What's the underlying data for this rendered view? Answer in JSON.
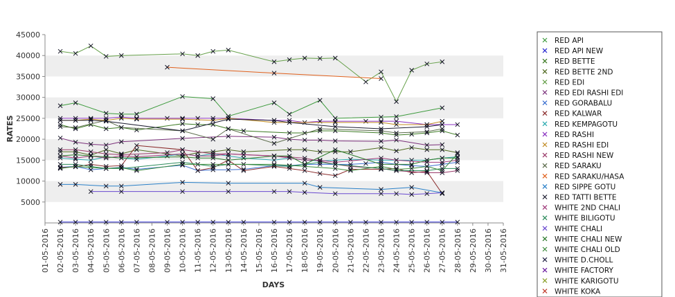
{
  "chart_data": {
    "type": "line",
    "xlabel": "DAYS",
    "ylabel": "RATES",
    "ylim": [
      0,
      45000
    ],
    "yticks": [
      5000,
      10000,
      15000,
      20000,
      25000,
      30000,
      35000,
      40000,
      45000
    ],
    "x_ticks": [
      "01-05-2016",
      "02-05-2016",
      "03-05-2016",
      "04-05-2016",
      "05-05-2016",
      "06-05-2016",
      "07-05-2016",
      "08-05-2016",
      "09-05-2016",
      "10-05-2016",
      "11-05-2016",
      "12-05-2016",
      "13-05-2016",
      "14-05-2016",
      "15-05-2016",
      "16-05-2016",
      "17-05-2016",
      "18-05-2016",
      "19-05-2016",
      "20-05-2016",
      "21-05-2016",
      "22-05-2016",
      "23-05-2016",
      "24-05-2016",
      "25-05-2016",
      "26-05-2016",
      "27-05-2016",
      "28-05-2016",
      "29-05-2016",
      "30-05-2016",
      "31-05-2016"
    ],
    "x_days": [
      2,
      3,
      4,
      5,
      6,
      7,
      9,
      10,
      11,
      12,
      13,
      14,
      16,
      17,
      18,
      19,
      20,
      21,
      22,
      23,
      24,
      25,
      26,
      27,
      28
    ],
    "grid": "alternating horizontal bands",
    "legend_position": "right",
    "series": [
      {
        "name": "RED API",
        "color": "#3c9a3c",
        "values": [
          28000,
          28700,
          null,
          26200,
          26000,
          26000,
          null,
          30200,
          null,
          29700,
          25500,
          null,
          28700,
          26000,
          null,
          29300,
          25000,
          null,
          null,
          25300,
          25400,
          null,
          null,
          27500,
          null
        ]
      },
      {
        "name": "RED API NEW",
        "color": "#2a2ad0",
        "values": [
          200,
          200,
          200,
          200,
          200,
          200,
          200,
          200,
          200,
          200,
          200,
          200,
          200,
          200,
          200,
          200,
          200,
          200,
          200,
          200,
          200,
          200,
          200,
          200,
          200
        ]
      },
      {
        "name": "RED BETTE",
        "color": "#3b7a22",
        "values": [
          23500,
          22500,
          23500,
          22500,
          22800,
          22200,
          null,
          23700,
          23500,
          23500,
          22500,
          22000,
          null,
          21500,
          21500,
          22000,
          22000,
          null,
          null,
          21500,
          21000,
          21200,
          21500,
          22000,
          21000
        ]
      },
      {
        "name": "RED BETTE 2ND",
        "color": "#506b20",
        "values": [
          17000,
          17000,
          16200,
          17500,
          16500,
          17500,
          null,
          16000,
          16800,
          17000,
          17500,
          17000,
          null,
          17500,
          17500,
          17000,
          17000,
          17000,
          null,
          18000,
          17200,
          18000,
          17500,
          17500,
          16800
        ]
      },
      {
        "name": "RED EDI",
        "color": "#66a04a",
        "values": [
          41000,
          40500,
          42300,
          39800,
          40000,
          null,
          null,
          40400,
          40000,
          41000,
          41300,
          null,
          38500,
          39000,
          39400,
          39300,
          39400,
          null,
          33700,
          36100,
          29000,
          36500,
          38000,
          38500,
          null
        ]
      },
      {
        "name": "RED EDI RASHI EDI",
        "color": "#7a2f7a",
        "values": [
          20300,
          19300,
          18800,
          18600,
          19400,
          null,
          null,
          20200,
          null,
          null,
          20700,
          null,
          20500,
          20000,
          19800,
          19800,
          19600,
          null,
          null,
          19500,
          19800,
          null,
          18600,
          18700,
          null
        ]
      },
      {
        "name": "RED GORABALU",
        "color": "#3a6fd0",
        "values": [
          13300,
          13500,
          12700,
          13000,
          13300,
          12800,
          null,
          13800,
          12500,
          12700,
          12700,
          12800,
          13700,
          13700,
          14000,
          14000,
          14000,
          14000,
          14200,
          14500,
          14000,
          13700,
          13500,
          14000,
          14500
        ]
      },
      {
        "name": "RED KALWAR",
        "color": "#8a2a2a",
        "values": [
          13200,
          13400,
          14000,
          13500,
          13700,
          18500,
          null,
          17500,
          12500,
          13200,
          15000,
          12500,
          13500,
          13000,
          12500,
          11800,
          11300,
          12800,
          null,
          12800,
          13000,
          12000,
          12300,
          7000,
          null
        ]
      },
      {
        "name": "RED KEMPAGOTU",
        "color": "#2aaab0",
        "values": [
          15500,
          15200,
          15000,
          15800,
          15500,
          15200,
          16000,
          16500,
          16000,
          16500,
          16000,
          15500,
          15000,
          15500,
          15000,
          14800,
          15000,
          15200,
          null,
          15000,
          15000,
          15000,
          15000,
          15500,
          15800
        ]
      },
      {
        "name": "RED RASHI",
        "color": "#8a30c0",
        "values": [
          25000,
          25000,
          25000,
          25000,
          25300,
          25000,
          25000,
          25000,
          25000,
          25000,
          25000,
          null,
          24500,
          24500,
          24000,
          24300,
          24300,
          null,
          24300,
          24300,
          24300,
          null,
          23500,
          23500,
          23500
        ]
      },
      {
        "name": "RED RASHI EDI",
        "color": "#c08a20",
        "values": [
          24500,
          24500,
          24800,
          24500,
          25000,
          24800,
          null,
          24800,
          null,
          24500,
          25000,
          null,
          24000,
          24000,
          null,
          null,
          24000,
          null,
          null,
          24000,
          23500,
          null,
          23500,
          24300,
          null
        ]
      },
      {
        "name": "RED RASHI NEW",
        "color": "#9a3a6a",
        "values": [
          17500,
          17500,
          17000,
          16500,
          16300,
          null,
          16800,
          17500,
          null,
          16500,
          16500,
          null,
          16000,
          null,
          15500,
          null,
          14000,
          13500,
          null,
          13000,
          12500,
          null,
          12000,
          12000,
          12500
        ]
      },
      {
        "name": "RED SARAKU",
        "color": "#5a6a4a",
        "values": [
          23000,
          22800,
          null,
          24500,
          22800,
          null,
          null,
          22000,
          null,
          20000,
          22500,
          null,
          19000,
          null,
          null,
          22500,
          null,
          null,
          null,
          22000,
          21500,
          null,
          21800,
          22500,
          null
        ]
      },
      {
        "name": "RED SARAKU/HASA",
        "color": "#e0601c",
        "values": [
          null,
          null,
          null,
          null,
          null,
          null,
          37200,
          null,
          null,
          null,
          null,
          null,
          35800,
          null,
          null,
          null,
          null,
          null,
          null,
          34500,
          null,
          null,
          null,
          null,
          null
        ]
      },
      {
        "name": "RED SIPPE GOTU",
        "color": "#2a80c8",
        "values": [
          9200,
          9200,
          null,
          8800,
          8800,
          null,
          null,
          9700,
          null,
          null,
          9500,
          null,
          null,
          null,
          9500,
          8500,
          null,
          null,
          null,
          8000,
          null,
          8500,
          null,
          7200,
          null
        ]
      },
      {
        "name": "RED TATTI BETTE",
        "color": "#1c1c30",
        "values": [
          24500,
          24500,
          24500,
          24300,
          null,
          null,
          null,
          22000,
          null,
          null,
          24800,
          null,
          24500,
          24000,
          null,
          null,
          23000,
          null,
          null,
          22500,
          null,
          null,
          23000,
          23500,
          null
        ]
      },
      {
        "name": "WHITE 2ND CHALI",
        "color": "#a03a7a",
        "values": [
          16000,
          15500,
          16000,
          15500,
          16000,
          15800,
          null,
          16500,
          16000,
          16000,
          16500,
          16300,
          16000,
          15500,
          15000,
          15000,
          14500,
          null,
          null,
          15500,
          15000,
          null,
          14500,
          14500,
          15000
        ]
      },
      {
        "name": "WHITE BILIGOTU",
        "color": "#2a8a5a",
        "values": [
          14000,
          14000,
          13500,
          13000,
          13000,
          null,
          null,
          14500,
          14000,
          13500,
          14000,
          14000,
          null,
          13500,
          null,
          14500,
          14000,
          null,
          null,
          13000,
          12500,
          null,
          12500,
          13000,
          13000
        ]
      },
      {
        "name": "WHITE CHALI",
        "color": "#6a4ad0",
        "values": [
          null,
          null,
          7500,
          null,
          7500,
          null,
          null,
          7500,
          null,
          null,
          7500,
          null,
          7500,
          7500,
          7300,
          null,
          7000,
          null,
          null,
          7000,
          7000,
          6800,
          7000,
          7200,
          null
        ]
      },
      {
        "name": "WHITE CHALI NEW",
        "color": "#2a7a2a",
        "values": [
          16000,
          16300,
          16000,
          null,
          15500,
          null,
          null,
          15800,
          15500,
          15500,
          15000,
          null,
          16000,
          16000,
          14000,
          null,
          17500,
          null,
          null,
          14000,
          null,
          14000,
          15000,
          15500,
          15500
        ]
      },
      {
        "name": "WHITE CHALI OLD",
        "color": "#3a8a3a",
        "values": [
          13000,
          13500,
          null,
          13000,
          13200,
          12500,
          null,
          14000,
          null,
          14000,
          14000,
          null,
          14000,
          null,
          13500,
          null,
          13000,
          12500,
          null,
          13500,
          12800,
          13000,
          13500,
          12500,
          16500
        ]
      },
      {
        "name": "WHITE D.CHOLL",
        "color": "#222244",
        "values": [
          null,
          null,
          null,
          null,
          null,
          null,
          null,
          null,
          null,
          null,
          null,
          null,
          null,
          null,
          null,
          null,
          null,
          null,
          null,
          null,
          null,
          null,
          null,
          null,
          null
        ]
      },
      {
        "name": "WHITE FACTORY",
        "color": "#6a1aa0",
        "values": [
          null,
          null,
          null,
          null,
          null,
          null,
          null,
          null,
          null,
          null,
          null,
          null,
          null,
          null,
          null,
          null,
          null,
          null,
          null,
          null,
          null,
          null,
          null,
          null,
          null
        ]
      },
      {
        "name": "WHITE KARIGOTU",
        "color": "#8aa02a",
        "values": [
          null,
          null,
          null,
          null,
          null,
          null,
          null,
          null,
          null,
          null,
          null,
          null,
          null,
          null,
          null,
          null,
          null,
          null,
          null,
          null,
          null,
          null,
          null,
          null,
          null
        ]
      },
      {
        "name": "WHITE KOKA",
        "color": "#c03a2a",
        "values": [
          null,
          null,
          null,
          null,
          null,
          null,
          null,
          null,
          null,
          null,
          null,
          null,
          null,
          null,
          null,
          null,
          null,
          null,
          null,
          null,
          null,
          null,
          null,
          null,
          null
        ]
      }
    ]
  }
}
